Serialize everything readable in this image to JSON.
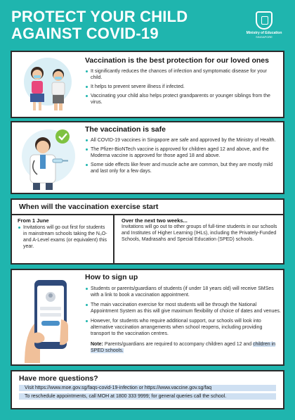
{
  "header": {
    "title_line1": "PROTECT YOUR CHILD",
    "title_line2": "AGAINST COVID-19",
    "moe_line1": "Ministry of Education",
    "moe_line2": "SINGAPORE"
  },
  "vaccination": {
    "heading": "Vaccination is the best protection for our loved ones",
    "bullets": [
      "It significantly reduces the chances of infection and symptomatic disease for your child.",
      "It helps to prevent severe illness if infected.",
      "Vaccinating your child also helps protect grandparents or younger siblings from the virus."
    ]
  },
  "safe": {
    "heading": "The vaccination is safe",
    "bullets": [
      "All COVID-19 vaccines in Singapore are safe and approved by the Ministry of Health.",
      "The Pfizer-BioNTech vaccine is approved for children aged 12 and above, and the Moderna vaccine is approved for those aged 18 and above.",
      "Some side effects like fever and muscle ache are common, but they are mostly mild and last only for a few days."
    ]
  },
  "when": {
    "heading": "When will the vaccination exercise start",
    "col1_title": "From 1 June",
    "col1_bullet": "Invitations will go out first for students in mainstream schools taking the N₀O- and A-Level exams (or equivalent) this year.",
    "col2_title": "Over the next two weeks...",
    "col2_text": "Invitations will go out to other groups of full-time students in our schools and Institutes of Higher Learning (IHLs), including the Privately-Funded Schools, Madrasahs and Special Education (SPED) schools."
  },
  "signup": {
    "heading": "How to sign up",
    "bullets": [
      "Students or parents/guardians of students (if under 18 years old) will receive SMSes with a link to book a vaccination appointment.",
      "The main vaccination exercise for most students will be through the National Appointment System as this will give maximum flexibility of choice of dates and venues.",
      "However, for students who require additional support, our schools will look into alternative vaccination arrangements when school reopens, including providing transport to the vaccination centres."
    ],
    "note_label": "Note:",
    "note_text_a": "Parents/guardians are required to accompany children aged 12 and ",
    "note_text_b": "children in SPED schools."
  },
  "more": {
    "heading": "Have more questions?",
    "bullet1": "Visit https://www.moe.gov.sg/faqs-covid-19-infection or https://www.vaccine.gov.sg/faq",
    "bullet2": "To reschedule appointments, call MOH at 1800 333 9999; for general queries call the school."
  },
  "colors": {
    "background": "#1fb5ae",
    "card": "#ffffff",
    "border": "#2b2b2b",
    "highlight": "#cfe0f2"
  },
  "icons": [
    "moe-crest-icon",
    "children-masks-illustration",
    "doctor-illustration",
    "checkmark-icon",
    "phone-in-hand-illustration"
  ]
}
